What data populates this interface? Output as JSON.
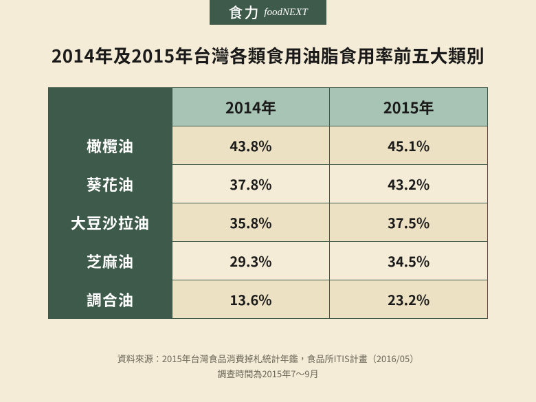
{
  "logo": {
    "cn": "食力",
    "en": "foodNEXT"
  },
  "title": "2014年及2015年台灣各類食用油脂食用率前五大類別",
  "columns": [
    "2014年",
    "2015年"
  ],
  "rows": [
    {
      "label": "橄欖油",
      "v2014": "43.8%",
      "v2015": "45.1%"
    },
    {
      "label": "葵花油",
      "v2014": "37.8%",
      "v2015": "43.2%"
    },
    {
      "label": "大豆沙拉油",
      "v2014": "35.8%",
      "v2015": "37.5%"
    },
    {
      "label": "芝麻油",
      "v2014": "29.3%",
      "v2015": "34.5%"
    },
    {
      "label": "調合油",
      "v2014": "13.6%",
      "v2015": "23.2%"
    }
  ],
  "footer": {
    "source": "資料來源：2015年台灣食品消費掉札統計年鑑，食品所ITIS計畫（2016/05）",
    "period": "調查時間為2015年7～9月"
  },
  "colors": {
    "page_bg": "#f5ecd7",
    "brand_green": "#3d5a4a",
    "header_green": "#a8c4b4",
    "row_odd_bg": "#ede1c3",
    "row_even_bg": "#f5ecd7",
    "text": "#1a1a1a",
    "footer_text": "#6a6657"
  }
}
